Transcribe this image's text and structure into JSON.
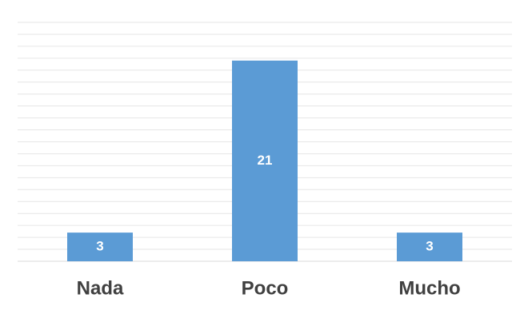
{
  "chart_data": {
    "type": "bar",
    "title": "",
    "xlabel": "",
    "ylabel": "",
    "categories": [
      "Nada",
      "Poco",
      "Mucho"
    ],
    "values": [
      3,
      21,
      3
    ],
    "data_labels": [
      "3",
      "21",
      "3"
    ],
    "ylim": [
      0,
      25
    ],
    "grid": true,
    "legend": "none",
    "colors": {
      "bar": "#5b9bd5",
      "grid": "#e6e6e6",
      "data_label": "#ffffff",
      "tick_label": "#404040"
    }
  }
}
